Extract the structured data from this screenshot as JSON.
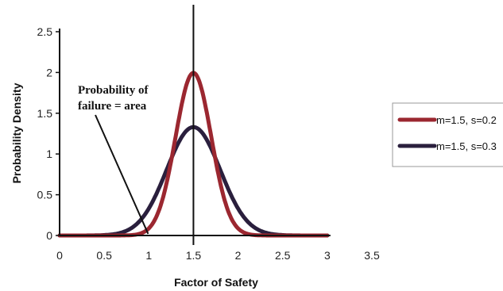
{
  "chart_data": {
    "type": "line",
    "xlabel": "Factor of Safety",
    "ylabel": "Probability Density",
    "xlim": [
      0,
      3.5
    ],
    "ylim": [
      0,
      2.5
    ],
    "x_ticks": [
      "0",
      "0.5",
      "1",
      "1.5",
      "2",
      "2.5",
      "3",
      "3.5"
    ],
    "y_ticks": [
      "0",
      "0.5",
      "1",
      "1.5",
      "2",
      "2.5"
    ],
    "grid": false,
    "legend_position": "right",
    "vertical_marker_x": 1.5,
    "annotation": {
      "line1": "Probability of",
      "line2": "failure = area",
      "points_to_x": 0.85
    },
    "series": [
      {
        "name": "m=1.5, s=0.2",
        "color": "#9b2730",
        "mean": 1.5,
        "sd": 0.2,
        "x": [
          0,
          0.8,
          0.9,
          1.0,
          1.1,
          1.2,
          1.3,
          1.4,
          1.5,
          1.6,
          1.7,
          1.8,
          1.9,
          2.0,
          2.1,
          2.2,
          3.0
        ],
        "values": [
          0,
          0.0044,
          0.022,
          0.088,
          0.27,
          0.65,
          1.21,
          1.76,
          1.99,
          1.76,
          1.21,
          0.65,
          0.27,
          0.088,
          0.022,
          0.0044,
          0
        ]
      },
      {
        "name": "m=1.5, s=0.3",
        "color": "#2a1f3d",
        "mean": 1.5,
        "sd": 0.3,
        "x": [
          0,
          0.3,
          0.6,
          0.8,
          0.9,
          1.0,
          1.1,
          1.2,
          1.3,
          1.4,
          1.5,
          1.6,
          1.7,
          1.8,
          1.9,
          2.0,
          2.1,
          2.2,
          2.4,
          2.7,
          3.0
        ],
        "values": [
          0,
          0.0004,
          0.015,
          0.087,
          0.18,
          0.33,
          0.55,
          0.81,
          1.06,
          1.26,
          1.33,
          1.26,
          1.06,
          0.81,
          0.55,
          0.33,
          0.18,
          0.087,
          0.015,
          0.0004,
          0
        ]
      }
    ]
  }
}
